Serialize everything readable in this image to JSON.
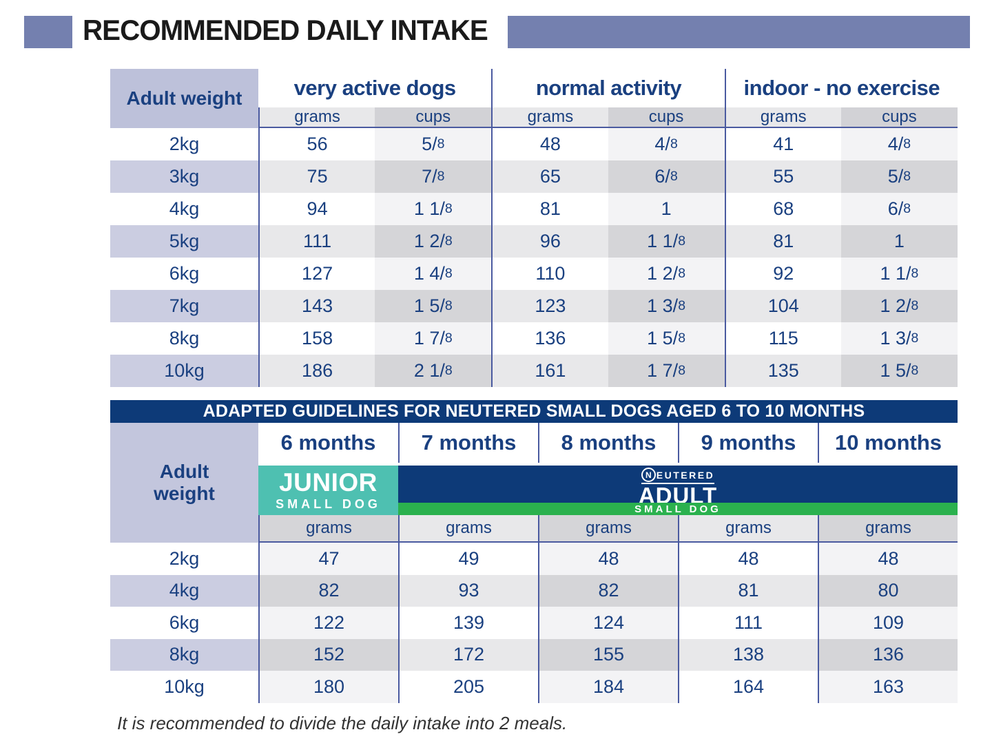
{
  "title": "RECOMMENDED DAILY INTAKE",
  "colors": {
    "accent_purple": "#7480af",
    "navy": "#0d3a78",
    "text_navy": "#1a4080",
    "stripe_purple": "#cbcde1",
    "junior_teal": "#4ec0b1",
    "small_dog_green": "#2bb14e"
  },
  "table1": {
    "weight_header": "Adult weight",
    "groups": [
      {
        "label": "very active dogs"
      },
      {
        "label": "normal activity"
      },
      {
        "label": "indoor - no exercise"
      }
    ],
    "unit_headers": [
      "grams",
      "cups"
    ],
    "rows": [
      {
        "weight": "2kg",
        "values": [
          "56",
          "5/8",
          "48",
          "4/8",
          "41",
          "4/8"
        ]
      },
      {
        "weight": "3kg",
        "values": [
          "75",
          "7/8",
          "65",
          "6/8",
          "55",
          "5/8"
        ]
      },
      {
        "weight": "4kg",
        "values": [
          "94",
          "1 1/8",
          "81",
          "1",
          "68",
          "6/8"
        ]
      },
      {
        "weight": "5kg",
        "values": [
          "111",
          "1 2/8",
          "96",
          "1 1/8",
          "81",
          "1"
        ]
      },
      {
        "weight": "6kg",
        "values": [
          "127",
          "1 4/8",
          "110",
          "1 2/8",
          "92",
          "1 1/8"
        ]
      },
      {
        "weight": "7kg",
        "values": [
          "143",
          "1 5/8",
          "123",
          "1 3/8",
          "104",
          "1 2/8"
        ]
      },
      {
        "weight": "8kg",
        "values": [
          "158",
          "1 7/8",
          "136",
          "1 5/8",
          "115",
          "1 3/8"
        ]
      },
      {
        "weight": "10kg",
        "values": [
          "186",
          "2 1/8",
          "161",
          "1 7/8",
          "135",
          "1 5/8"
        ]
      }
    ]
  },
  "table2": {
    "banner": "ADAPTED GUIDELINES FOR NEUTERED SMALL DOGS AGED 6 TO 10 MONTHS",
    "weight_header_line1": "Adult",
    "weight_header_line2": "weight",
    "months": [
      "6 months",
      "7 months",
      "8 months",
      "9 months",
      "10 months"
    ],
    "junior_badge": {
      "line1": "JUNIOR",
      "line2": "SMALL DOG"
    },
    "adult_badge": {
      "brand_initial": "N",
      "brand_rest": "EUTERED",
      "line1": "ADULT",
      "line2": "SMALL DOG"
    },
    "unit_header": "grams",
    "rows": [
      {
        "weight": "2kg",
        "values": [
          "47",
          "49",
          "48",
          "48",
          "48"
        ]
      },
      {
        "weight": "4kg",
        "values": [
          "82",
          "93",
          "82",
          "81",
          "80"
        ]
      },
      {
        "weight": "6kg",
        "values": [
          "122",
          "139",
          "124",
          "111",
          "109"
        ]
      },
      {
        "weight": "8kg",
        "values": [
          "152",
          "172",
          "155",
          "138",
          "136"
        ]
      },
      {
        "weight": "10kg",
        "values": [
          "180",
          "205",
          "184",
          "164",
          "163"
        ]
      }
    ]
  },
  "footer_note": "It is recommended to divide the daily intake into 2 meals."
}
